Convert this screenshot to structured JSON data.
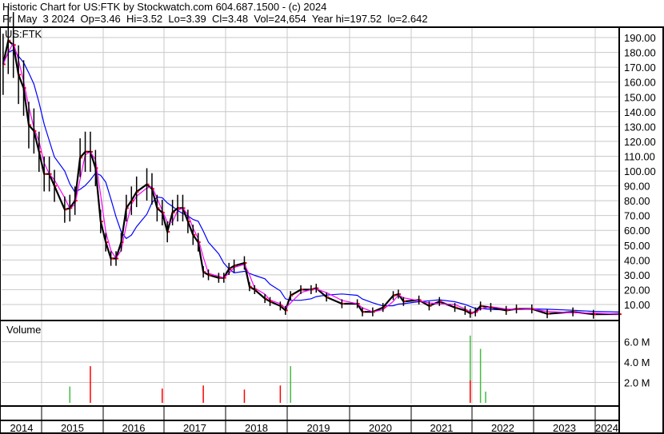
{
  "header": {
    "line1": "Historic Chart for US:FTK by Stockwatch.com 604.687.1500 - (c) 2024",
    "line2": "Fri May  3 2024  Op=3.46  Hi=3.52  Lo=3.39  Cl=3.48  Vol=24,654  Year hi=197.52  lo=2.642"
  },
  "colors": {
    "price": "#000000",
    "down_tick": "#ff0000",
    "ma_short": "#ff00ff",
    "ma_long": "#0000ff",
    "vol_up": "#44bb44",
    "vol_down": "#ff0000",
    "grid": "#c8c8c8"
  },
  "chart_data": [
    {
      "type": "line",
      "title": "US:FTK",
      "ylim": [
        0,
        197.52
      ],
      "grid": true,
      "y_ticks": [
        "10.00",
        "20.00",
        "30.00",
        "40.00",
        "50.00",
        "60.00",
        "70.00",
        "80.00",
        "90.00",
        "100.00",
        "110.00",
        "120.00",
        "130.00",
        "140.00",
        "150.00",
        "160.00",
        "170.00",
        "180.00",
        "190.00"
      ],
      "x_ticks": [
        "2014",
        "2015",
        "2016",
        "2017",
        "2018",
        "2019",
        "2020",
        "2021",
        "2022",
        "2023",
        "2024"
      ],
      "series": [
        {
          "points": [
            [
              "2014-05",
              172
            ],
            [
              "2014-06",
              188
            ],
            [
              "2014-07",
              185
            ],
            [
              "2014-08",
              165
            ],
            [
              "2014-09",
              156
            ],
            [
              "2014-10",
              131
            ],
            [
              "2014-11",
              127
            ],
            [
              "2014-12",
              113
            ],
            [
              "2015-01",
              98
            ],
            [
              "2015-02",
              98
            ],
            [
              "2015-03",
              90
            ],
            [
              "2015-05",
              74
            ],
            [
              "2015-06",
              75
            ],
            [
              "2015-07",
              80
            ],
            [
              "2015-08",
              109
            ],
            [
              "2015-09",
              113
            ],
            [
              "2015-10",
              113
            ],
            [
              "2015-11",
              102
            ],
            [
              "2015-12",
              66
            ],
            [
              "2016-01",
              52
            ],
            [
              "2016-02",
              41
            ],
            [
              "2016-03",
              41
            ],
            [
              "2016-04",
              52
            ],
            [
              "2016-05",
              75
            ],
            [
              "2016-06",
              80
            ],
            [
              "2016-07",
              86
            ],
            [
              "2016-09",
              91
            ],
            [
              "2016-10",
              88
            ],
            [
              "2016-11",
              75
            ],
            [
              "2016-12",
              72
            ],
            [
              "2017-01",
              59
            ],
            [
              "2017-02",
              72
            ],
            [
              "2017-03",
              75
            ],
            [
              "2017-04",
              75
            ],
            [
              "2017-05",
              66
            ],
            [
              "2017-06",
              57
            ],
            [
              "2017-07",
              52
            ],
            [
              "2017-08",
              32
            ],
            [
              "2017-09",
              30
            ],
            [
              "2017-11",
              28
            ],
            [
              "2017-12",
              28
            ],
            [
              "2018-01",
              34
            ],
            [
              "2018-02",
              36
            ],
            [
              "2018-04",
              38
            ],
            [
              "2018-05",
              22
            ],
            [
              "2018-06",
              20
            ],
            [
              "2018-08",
              14
            ],
            [
              "2018-09",
              12
            ],
            [
              "2018-11",
              9
            ],
            [
              "2018-12",
              6
            ],
            [
              "2019-01",
              16
            ],
            [
              "2019-03",
              20
            ],
            [
              "2019-05",
              20
            ],
            [
              "2019-06",
              21
            ],
            [
              "2019-08",
              15
            ],
            [
              "2019-11",
              10.5
            ],
            [
              "2020-02",
              10.5
            ],
            [
              "2020-03",
              5
            ],
            [
              "2020-05",
              5
            ],
            [
              "2020-07",
              8
            ],
            [
              "2020-09",
              16
            ],
            [
              "2020-10",
              17
            ],
            [
              "2020-11",
              12
            ],
            [
              "2021-02",
              13
            ],
            [
              "2021-04",
              9
            ],
            [
              "2021-06",
              12
            ],
            [
              "2021-09",
              8
            ],
            [
              "2021-11",
              6
            ],
            [
              "2021-12",
              4
            ],
            [
              "2022-01",
              5
            ],
            [
              "2022-02",
              9
            ],
            [
              "2022-04",
              8
            ],
            [
              "2022-07",
              6
            ],
            [
              "2022-09",
              7
            ],
            [
              "2022-12",
              7
            ],
            [
              "2023-03",
              3.7
            ],
            [
              "2023-08",
              5
            ],
            [
              "2023-12",
              3.4
            ],
            [
              "2024-05",
              3.48
            ]
          ]
        }
      ]
    },
    {
      "type": "bar",
      "title": "Volume",
      "y_ticks": [
        "2.0 M",
        "4.0 M",
        "6.0 M"
      ],
      "unit": "M",
      "bars": [
        {
          "date": "2015-06",
          "value": 1.6,
          "dir": "up"
        },
        {
          "date": "2015-10",
          "value": 3.6,
          "dir": "down"
        },
        {
          "date": "2016-12",
          "value": 1.4,
          "dir": "down"
        },
        {
          "date": "2017-08",
          "value": 1.7,
          "dir": "down"
        },
        {
          "date": "2018-04",
          "value": 1.3,
          "dir": "down"
        },
        {
          "date": "2018-11",
          "value": 1.7,
          "dir": "down"
        },
        {
          "date": "2019-01",
          "value": 3.6,
          "dir": "up"
        },
        {
          "date": "2021-12",
          "value": 6.6,
          "dir": "up"
        },
        {
          "date": "2021-12",
          "value": 2.2,
          "dir": "down"
        },
        {
          "date": "2022-02",
          "value": 5.3,
          "dir": "up"
        },
        {
          "date": "2022-03",
          "value": 1.1,
          "dir": "up"
        }
      ]
    }
  ]
}
